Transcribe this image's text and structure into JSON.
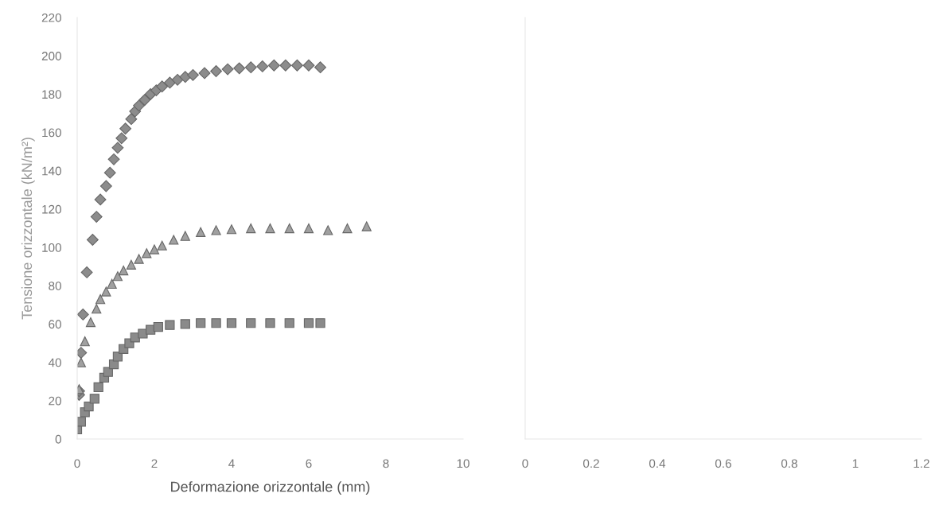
{
  "chart_data": [
    {
      "type": "scatter",
      "xlabel": "Deformazione orizzontale (mm)",
      "ylabel": "Tensione orizzontale (kN/m²)",
      "xlim": [
        0,
        10
      ],
      "ylim": [
        0,
        220
      ],
      "xticks": [
        0,
        2,
        4,
        6,
        8,
        10
      ],
      "yticks": [
        0,
        20,
        40,
        60,
        80,
        100,
        120,
        140,
        160,
        180,
        200,
        220
      ],
      "grid": false,
      "series": [
        {
          "marker": "diamond",
          "color": "#8c8c8c",
          "x": [
            0.05,
            0.05,
            0.1,
            0.15,
            0.25,
            0.4,
            0.5,
            0.6,
            0.75,
            0.85,
            0.95,
            1.05,
            1.15,
            1.25,
            1.4,
            1.5,
            1.6,
            1.75,
            1.9,
            2.05,
            2.2,
            2.4,
            2.6,
            2.8,
            3.0,
            3.3,
            3.6,
            3.9,
            4.2,
            4.5,
            4.8,
            5.1,
            5.4,
            5.7,
            6.0,
            6.3
          ],
          "values": [
            23,
            25,
            45,
            65,
            87,
            104,
            116,
            125,
            132,
            139,
            146,
            152,
            157,
            162,
            167,
            171,
            174,
            177,
            180,
            182,
            184,
            186,
            187.5,
            189,
            190,
            191,
            192,
            193,
            193.5,
            194,
            194.5,
            195,
            195,
            195,
            195,
            194
          ]
        },
        {
          "marker": "triangle",
          "color": "#a0a0a0",
          "x": [
            0.05,
            0.1,
            0.2,
            0.35,
            0.5,
            0.6,
            0.75,
            0.9,
            1.05,
            1.2,
            1.4,
            1.6,
            1.8,
            2.0,
            2.2,
            2.5,
            2.8,
            3.2,
            3.6,
            4.0,
            4.5,
            5.0,
            5.5,
            6.0,
            6.5,
            7.0,
            7.5
          ],
          "values": [
            26,
            40,
            51,
            61,
            68,
            73,
            77,
            81,
            85,
            88,
            91,
            94,
            97,
            99,
            101,
            104,
            106,
            108,
            109,
            109.5,
            110,
            110,
            110,
            110,
            109,
            110,
            111
          ]
        },
        {
          "marker": "square",
          "color": "#8a8a8a",
          "x": [
            0.0,
            0.1,
            0.2,
            0.3,
            0.45,
            0.55,
            0.7,
            0.8,
            0.95,
            1.05,
            1.2,
            1.35,
            1.5,
            1.7,
            1.9,
            2.1,
            2.4,
            2.8,
            3.2,
            3.6,
            4.0,
            4.5,
            5.0,
            5.5,
            6.0,
            6.3
          ],
          "values": [
            5,
            9,
            14,
            17,
            21,
            27,
            32,
            35,
            39,
            43,
            47,
            50,
            53,
            55,
            57,
            58.5,
            59.5,
            60,
            60.5,
            60.5,
            60.5,
            60.5,
            60.5,
            60.5,
            60.5,
            60.5
          ]
        }
      ]
    },
    {
      "type": "scatter",
      "xlim": [
        0,
        1.2
      ],
      "ylim": [
        0,
        220
      ],
      "xticks": [
        0,
        0.2,
        0.4,
        0.6,
        0.8,
        1,
        1.2
      ],
      "tick_labels": "x",
      "grid": false
    }
  ]
}
